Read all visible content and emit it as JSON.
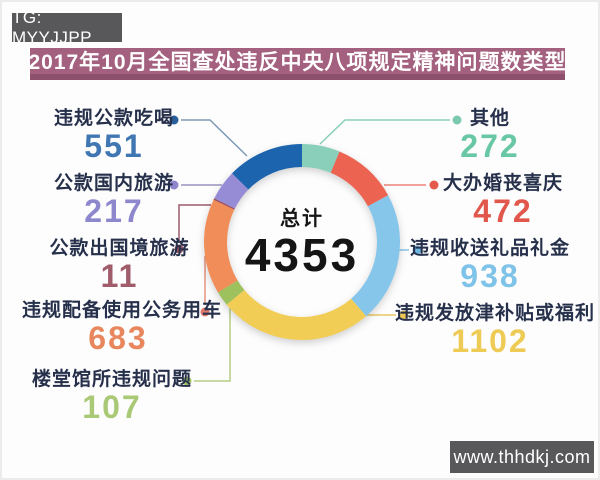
{
  "watermarks": {
    "top_left": "TG: MYYJJPP",
    "bottom_right": "www.thhdkj.com",
    "badge_bg": "#58585a"
  },
  "header": {
    "title": "2017年10月全国查处违反中央八项规定精神问题数类型",
    "bg_color": "#a4607f",
    "shadow_color": "#8c506c"
  },
  "chart_data": {
    "type": "pie",
    "variant": "donut",
    "title": "2017年10月全国查处违反中央八项规定精神问题数类型",
    "center_label": "总计",
    "total": 4353,
    "start_angle_deg": 0,
    "direction": "clockwise",
    "items": [
      {
        "label": "其他",
        "value": 272,
        "color": "#89cfba",
        "number_color": "#68c7a4",
        "line_color": "#89cfba",
        "dot_color": "#7cc9b2"
      },
      {
        "label": "大办婚丧喜庆",
        "value": 472,
        "color": "#ec6352",
        "number_color": "#e2574b",
        "line_color": "#ea8378",
        "dot_color": "#e4594c"
      },
      {
        "label": "违规收送礼品礼金",
        "value": 938,
        "color": "#85c6ea",
        "number_color": "#7fc3e8",
        "line_color": "#85c6ea",
        "dot_color": "#6fb8e2"
      },
      {
        "label": "违规发放津补贴或福利",
        "value": 1102,
        "color": "#f2cd55",
        "number_color": "#eecb55",
        "line_color": "#e9c763",
        "dot_color": "#ecc752"
      },
      {
        "label": "楼堂馆所违规问题",
        "value": 107,
        "color": "#9dc15c",
        "number_color": "#a9c977",
        "line_color": "#b5cc85",
        "dot_color": "#a3c566"
      },
      {
        "label": "违规配备使用公务用车",
        "value": 683,
        "color": "#f08d58",
        "number_color": "#e8875d",
        "line_color": "#e8937e",
        "dot_color": "#e0796b"
      },
      {
        "label": "公款出国境旅游",
        "value": 11,
        "color": "#9b4f62",
        "number_color": "#a05c6a",
        "line_color": "#9c5b6b",
        "dot_color": "#96505f"
      },
      {
        "label": "公款国内旅游",
        "value": 217,
        "color": "#968cd6",
        "number_color": "#8d87cd",
        "line_color": "#9a93bd",
        "dot_color": "#8f85cc"
      },
      {
        "label": "违规公款吃喝",
        "value": 551,
        "color": "#1d64ae",
        "number_color": "#4077b2",
        "line_color": "#7e9ab5",
        "dot_color": "#2a6099"
      }
    ],
    "geometry_note": "nine segments clockwise from 12 o'clock",
    "legend_position": "around"
  },
  "center": {
    "label": "总计",
    "total": "4353"
  }
}
